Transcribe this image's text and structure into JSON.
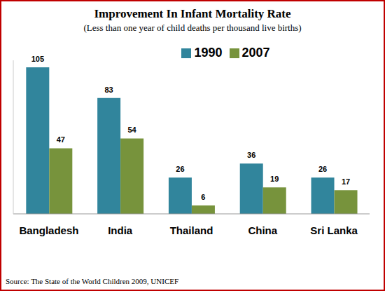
{
  "chart_data": {
    "type": "bar",
    "title": "Improvement In Infant Mortality Rate",
    "subtitle": "(Less than one year of child deaths per thousand live births)",
    "source": "Source: The State of the World Children 2009, UNICEF",
    "categories": [
      "Bangladesh",
      "India",
      "Thailand",
      "China",
      "Sri Lanka"
    ],
    "series": [
      {
        "name": "1990",
        "color": "#31859C",
        "values": [
          105,
          83,
          26,
          36,
          26
        ]
      },
      {
        "name": "2007",
        "color": "#77933C",
        "values": [
          47,
          54,
          6,
          19,
          17
        ]
      }
    ],
    "ylim": [
      0,
      110
    ],
    "grid": false,
    "legend": "top",
    "data_labels": true,
    "tick_labels": "x"
  }
}
